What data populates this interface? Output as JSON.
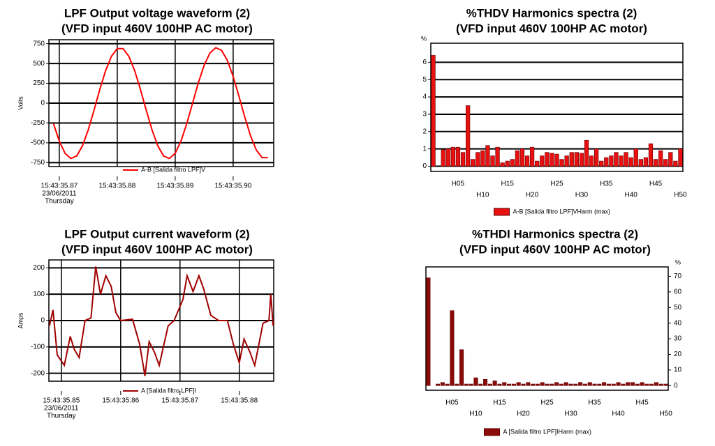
{
  "chart_data": [
    {
      "type": "line",
      "title": "LPF Output voltage waveform (2)",
      "subtitle": "(VFD input 460V 100HP AC motor)",
      "y_label": "Volts",
      "x": [
        35.869,
        35.87,
        35.871,
        35.872,
        35.873,
        35.874,
        35.875,
        35.876,
        35.877,
        35.878,
        35.879,
        35.88,
        35.881,
        35.882,
        35.883,
        35.884,
        35.885,
        35.886,
        35.887,
        35.888,
        35.889,
        35.89,
        35.891,
        35.892,
        35.893,
        35.894,
        35.895,
        35.896,
        35.897,
        35.898,
        35.899,
        35.9,
        35.901,
        35.902,
        35.903,
        35.904,
        35.905,
        35.906
      ],
      "series": [
        {
          "name": "A-B [Salida filtro LPF]V",
          "color": "#ff0000",
          "values": [
            -258,
            -479,
            -633,
            -699,
            -666,
            -539,
            -337,
            -88,
            174,
            411,
            591,
            688,
            688,
            591,
            411,
            174,
            -88,
            -337,
            -539,
            -666,
            -699,
            -633,
            -479,
            -258,
            0,
            258,
            479,
            633,
            699,
            666,
            539,
            337,
            88,
            -174,
            -411,
            -591,
            -688,
            -688
          ]
        }
      ],
      "xlim": [
        35.8682,
        35.907
      ],
      "xticks": [
        {
          "value": 35.87,
          "label": "15:43:35.87"
        },
        {
          "value": 35.88,
          "label": "15:43:35.88"
        },
        {
          "value": 35.89,
          "label": "15:43:35.89"
        },
        {
          "value": 35.9,
          "label": "15:43:35.90"
        }
      ],
      "x_sublabels": [
        "23/06/2011",
        "Thursday"
      ],
      "ylim": [
        -800,
        800
      ],
      "yticks": [
        750,
        500,
        250,
        0,
        -250,
        -500,
        -750
      ],
      "grid": true
    },
    {
      "type": "line",
      "title": "LPF Output current waveform (2)",
      "subtitle": "(VFD input 460V 100HP AC motor)",
      "y_label": "Amps",
      "x": [
        35.848,
        35.8486,
        35.8493,
        35.8505,
        35.8515,
        35.8522,
        35.853,
        35.854,
        35.855,
        35.8558,
        35.8566,
        35.8575,
        35.8584,
        35.8592,
        35.86,
        35.862,
        35.8632,
        35.8641,
        35.8648,
        35.8657,
        35.8665,
        35.868,
        35.869,
        35.8705,
        35.8712,
        35.8722,
        35.8732,
        35.874,
        35.8752,
        35.8765,
        35.878,
        35.879,
        35.88,
        35.8808,
        35.8818,
        35.8826,
        35.884,
        35.885,
        35.8853,
        35.8857
      ],
      "series": [
        {
          "name": "A [Salida filtro LPF]I",
          "color": "#a00000",
          "values": [
            -20,
            40,
            -130,
            -170,
            -60,
            -110,
            -140,
            0,
            10,
            205,
            100,
            170,
            130,
            30,
            0,
            5,
            -90,
            -210,
            -80,
            -120,
            -170,
            -20,
            0,
            80,
            170,
            110,
            170,
            120,
            20,
            0,
            0,
            -90,
            -160,
            -70,
            -120,
            -170,
            -10,
            0,
            100,
            -20
          ]
        }
      ],
      "xlim": [
        35.8479,
        35.8858
      ],
      "xticks": [
        {
          "value": 35.85,
          "label": "15:43:35.85"
        },
        {
          "value": 35.86,
          "label": "15:43:35.86"
        },
        {
          "value": 35.87,
          "label": "15:43:35.87"
        },
        {
          "value": 35.88,
          "label": "15:43:35.88"
        }
      ],
      "x_sublabels": [
        "23/06/2011",
        "Thursday"
      ],
      "ylim": [
        -230,
        230
      ],
      "yticks": [
        200,
        100,
        0,
        -100,
        -200
      ],
      "grid": true
    },
    {
      "type": "bar",
      "title": "%THDV Harmonics spectra (2)",
      "subtitle": "(VFD input 460V 100HP AC motor)",
      "y_unit": "%",
      "yaxis_side": "left",
      "categories": [
        null,
        null,
        null,
        null,
        null,
        "H05",
        null,
        null,
        null,
        null,
        "H10",
        null,
        null,
        null,
        null,
        "H15",
        null,
        null,
        null,
        null,
        "H20",
        null,
        null,
        null,
        null,
        "H25",
        null,
        null,
        null,
        null,
        "H30",
        null,
        null,
        null,
        null,
        "H35",
        null,
        null,
        null,
        null,
        "H40",
        null,
        null,
        null,
        null,
        "H45",
        null,
        null,
        null,
        null,
        "H50"
      ],
      "series": [
        {
          "name": "A-B [Salida filtro LPF]VHarm (max)",
          "color": "#e81010",
          "values": [
            6.4,
            null,
            0.95,
            1.0,
            1.1,
            1.1,
            0.8,
            3.5,
            0.4,
            0.8,
            0.9,
            1.2,
            0.6,
            1.1,
            0.2,
            0.3,
            0.4,
            0.9,
            1.0,
            0.6,
            1.1,
            0.3,
            0.6,
            0.8,
            0.75,
            0.7,
            0.4,
            0.6,
            0.8,
            0.8,
            0.75,
            1.5,
            0.6,
            1.0,
            0.3,
            0.5,
            0.6,
            0.8,
            0.6,
            0.8,
            0.5,
            1.0,
            0.4,
            0.5,
            1.3,
            0.4,
            0.9,
            0.4,
            0.8,
            0.3,
            1.0
          ]
        }
      ],
      "ylim": [
        -0.3,
        7.1
      ],
      "yticks": [
        0,
        1,
        2,
        3,
        4,
        5,
        6
      ],
      "grid": true
    },
    {
      "type": "bar",
      "title": "%THDI Harmonics spectra (2)",
      "subtitle": "(VFD input 460V 100HP AC motor)",
      "y_unit": "%",
      "yaxis_side": "right",
      "categories": [
        null,
        null,
        null,
        null,
        null,
        "H05",
        null,
        null,
        null,
        null,
        "H10",
        null,
        null,
        null,
        null,
        "H15",
        null,
        null,
        null,
        null,
        "H20",
        null,
        null,
        null,
        null,
        "H25",
        null,
        null,
        null,
        null,
        "H30",
        null,
        null,
        null,
        null,
        "H35",
        null,
        null,
        null,
        null,
        "H40",
        null,
        null,
        null,
        null,
        "H45",
        null,
        null,
        null,
        null,
        "H50"
      ],
      "series": [
        {
          "name": "A [Salida filtro LPF]IHarm (max)",
          "color": "#8b0a0a",
          "values": [
            69,
            null,
            1,
            2,
            1,
            48,
            1,
            23,
            1,
            1,
            5,
            1,
            4,
            1,
            3,
            1,
            2,
            1,
            1,
            2,
            1,
            2,
            1,
            1,
            2,
            1,
            1,
            2,
            1,
            2,
            1,
            1,
            2,
            1,
            2,
            1,
            1,
            2,
            1,
            1,
            2,
            1,
            2,
            2,
            1,
            2,
            1,
            1,
            2,
            1,
            1
          ]
        }
      ],
      "ylim": [
        -3,
        76
      ],
      "yticks": [
        0,
        10,
        20,
        30,
        40,
        50,
        60,
        70
      ],
      "grid": false
    }
  ]
}
